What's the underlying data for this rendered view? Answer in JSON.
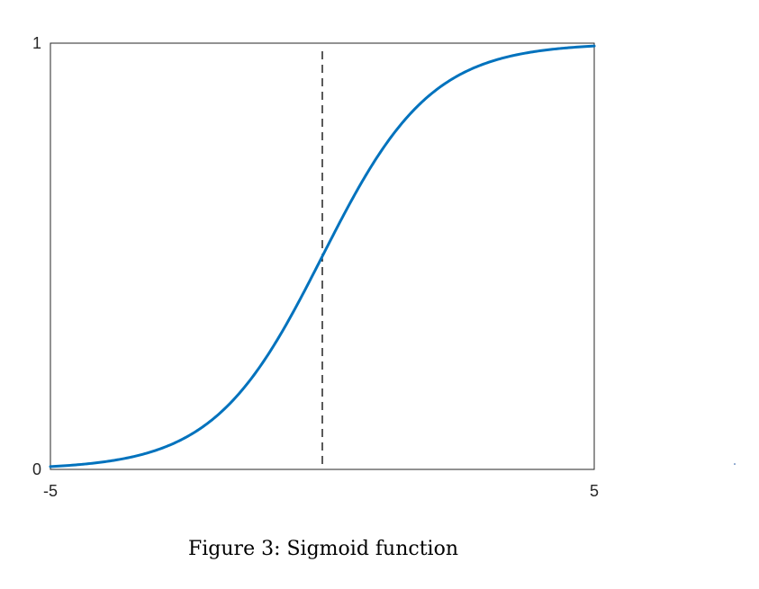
{
  "chart_data": {
    "type": "line",
    "title": "",
    "xlabel": "",
    "ylabel": "",
    "xlim": [
      -5,
      5
    ],
    "ylim": [
      0,
      1
    ],
    "x_ticks": [
      -5,
      5
    ],
    "x_tick_labels": [
      "-5",
      "5"
    ],
    "y_ticks": [
      0,
      1
    ],
    "y_tick_labels": [
      "0",
      "1"
    ],
    "grid": false,
    "legend": "none",
    "series": [
      {
        "function": "1/(1+exp(-x))",
        "color": "#0072BD",
        "x": [
          -5,
          -4.5,
          -4,
          -3.5,
          -3,
          -2.5,
          -2,
          -1.5,
          -1,
          -0.5,
          0,
          0.5,
          1,
          1.5,
          2,
          2.5,
          3,
          3.5,
          4,
          4.5,
          5
        ],
        "y": [
          0.0067,
          0.011,
          0.018,
          0.0293,
          0.0474,
          0.0759,
          0.1192,
          0.1824,
          0.2689,
          0.3775,
          0.5,
          0.6225,
          0.7311,
          0.8176,
          0.8808,
          0.9241,
          0.9526,
          0.9707,
          0.982,
          0.989,
          0.9933
        ]
      }
    ],
    "annotations": [
      {
        "type": "vertical-dashed-line",
        "x": 0,
        "color": "#000000"
      }
    ]
  },
  "caption": "Figure 3: Sigmoid function"
}
